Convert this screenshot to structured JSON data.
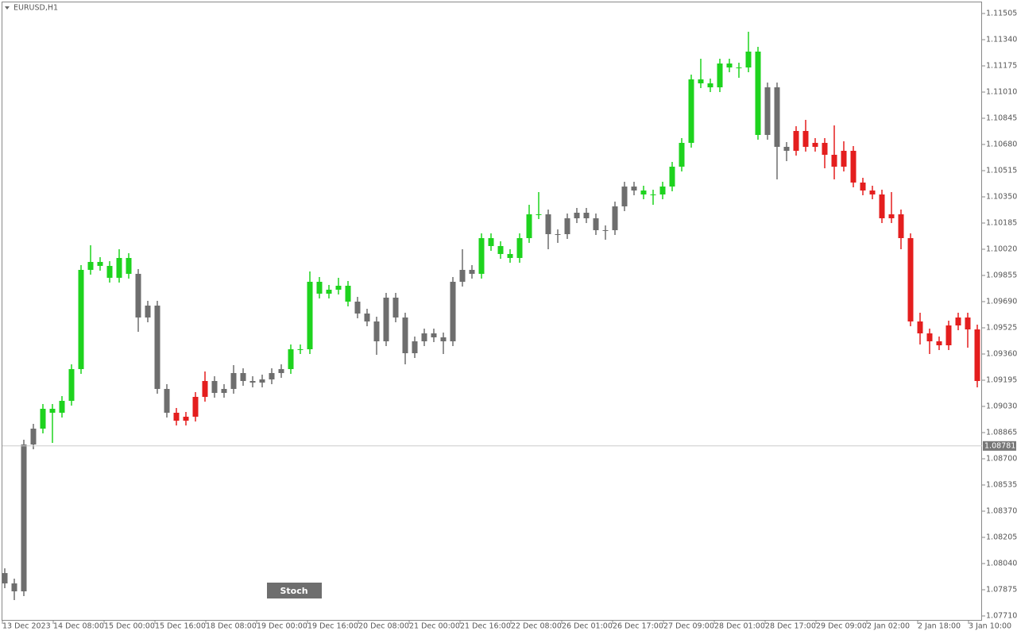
{
  "chart_data": {
    "type": "candlestick",
    "title": "EURUSD,H1",
    "open": [
      1.0798,
      1.07915,
      1.07865,
      1.0879,
      1.0889,
      1.09015,
      1.0899,
      1.09065,
      1.09265,
      1.0989,
      1.0994,
      1.09915,
      1.0984,
      1.09965,
      1.09865,
      1.0959,
      1.09665,
      1.0914,
      1.0899,
      1.0894,
      1.08965,
      1.0909,
      1.0919,
      1.09115,
      1.0914,
      1.0924,
      1.0919,
      1.0918,
      1.092,
      1.0924,
      1.09265,
      1.0939,
      1.0939,
      1.09815,
      1.0974,
      1.09765,
      1.0979,
      1.0969,
      1.09615,
      1.09565,
      1.0944,
      1.09715,
      1.0959,
      1.09365,
      1.0944,
      1.0949,
      1.09465,
      1.0944,
      1.09815,
      1.0989,
      1.09865,
      1.1009,
      1.1004,
      1.0999,
      1.09965,
      1.1009,
      1.1024,
      1.1024,
      1.10115,
      1.10115,
      1.10215,
      1.1025,
      1.10215,
      1.1014,
      1.1014,
      1.1029,
      1.10415,
      1.1039,
      1.10365,
      1.10365,
      1.10415,
      1.1054,
      1.1069,
      1.1109,
      1.11065,
      1.1104,
      1.1119,
      1.11165,
      1.11165,
      1.11265,
      1.1074,
      1.1104,
      1.10665,
      1.1064,
      1.10765,
      1.10665,
      1.1069,
      1.10615,
      1.1054,
      1.1064,
      1.1044,
      1.1039,
      1.10365,
      1.10215,
      1.1024,
      1.1009,
      1.09565,
      1.0949,
      1.0944,
      1.09415,
      1.0954,
      1.0959,
      1.09515
    ],
    "high": [
      1.0801,
      1.07945,
      1.0882,
      1.0892,
      1.09045,
      1.09045,
      1.09095,
      1.09295,
      1.0992,
      1.10045,
      1.0997,
      1.09945,
      1.1002,
      1.09995,
      1.09895,
      1.09695,
      1.09695,
      1.0917,
      1.0902,
      1.08995,
      1.0912,
      1.0925,
      1.0922,
      1.0917,
      1.0929,
      1.0927,
      1.0922,
      1.0923,
      1.0927,
      1.09295,
      1.0942,
      1.0942,
      1.0988,
      1.09845,
      1.09795,
      1.0984,
      1.0982,
      1.0972,
      1.09645,
      1.09595,
      1.09745,
      1.09745,
      1.0962,
      1.0947,
      1.0952,
      1.0952,
      1.09495,
      1.09845,
      1.1002,
      1.0992,
      1.1012,
      1.1012,
      1.1007,
      1.1002,
      1.1012,
      1.103,
      1.1038,
      1.1027,
      1.10145,
      1.10245,
      1.1028,
      1.1028,
      1.10245,
      1.1017,
      1.1032,
      1.10445,
      1.10445,
      1.1042,
      1.10395,
      1.10445,
      1.1057,
      1.1072,
      1.1112,
      1.1122,
      1.11095,
      1.1122,
      1.1122,
      1.11195,
      1.1139,
      1.11295,
      1.1107,
      1.1107,
      1.10695,
      1.10795,
      1.10835,
      1.1072,
      1.1072,
      1.108,
      1.107,
      1.1067,
      1.1047,
      1.1042,
      1.10395,
      1.1038,
      1.1027,
      1.1012,
      1.0962,
      1.0952,
      1.0947,
      1.0957,
      1.0962,
      1.0962,
      1.09545
    ],
    "low": [
      1.07885,
      1.0781,
      1.07835,
      1.0876,
      1.0886,
      1.088,
      1.0896,
      1.09035,
      1.09235,
      1.0986,
      1.09885,
      1.0981,
      1.0981,
      1.09835,
      1.095,
      1.0956,
      1.0911,
      1.0896,
      1.0891,
      1.0891,
      1.08935,
      1.0906,
      1.09085,
      1.09085,
      1.0911,
      1.0916,
      1.0915,
      1.0915,
      1.0917,
      1.0921,
      1.09235,
      1.0936,
      1.0936,
      1.0971,
      1.0971,
      1.09735,
      1.0966,
      1.09585,
      1.09535,
      1.09355,
      1.0941,
      1.0956,
      1.09295,
      1.09335,
      1.0941,
      1.09435,
      1.0936,
      1.0941,
      1.09785,
      1.09835,
      1.09835,
      1.1001,
      1.0996,
      1.09935,
      1.09935,
      1.1006,
      1.1021,
      1.1002,
      1.1006,
      1.10085,
      1.10185,
      1.10185,
      1.1011,
      1.1008,
      1.1011,
      1.1026,
      1.1036,
      1.10335,
      1.103,
      1.10335,
      1.10385,
      1.1051,
      1.1066,
      1.11035,
      1.1101,
      1.1101,
      1.11135,
      1.111,
      1.11135,
      1.1071,
      1.1071,
      1.1046,
      1.10575,
      1.1061,
      1.10635,
      1.10635,
      1.1053,
      1.1046,
      1.1051,
      1.1041,
      1.1036,
      1.10335,
      1.10185,
      1.10185,
      1.1002,
      1.09535,
      1.0942,
      1.0936,
      1.09385,
      1.09385,
      1.0951,
      1.094,
      1.0915
    ],
    "close": [
      1.07915,
      1.07865,
      1.0879,
      1.0889,
      1.09015,
      1.0899,
      1.09065,
      1.09265,
      1.0989,
      1.0994,
      1.09915,
      1.0984,
      1.09965,
      1.09865,
      1.0959,
      1.09665,
      1.0914,
      1.0899,
      1.0894,
      1.08965,
      1.0909,
      1.0919,
      1.09115,
      1.0914,
      1.0924,
      1.0919,
      1.0918,
      1.092,
      1.0924,
      1.09265,
      1.0939,
      1.0939,
      1.09815,
      1.0974,
      1.09765,
      1.0979,
      1.0969,
      1.09615,
      1.09565,
      1.0944,
      1.09715,
      1.0959,
      1.09365,
      1.0944,
      1.0949,
      1.09465,
      1.0944,
      1.09815,
      1.0989,
      1.09865,
      1.1009,
      1.1004,
      1.0999,
      1.09965,
      1.1009,
      1.1024,
      1.1024,
      1.10115,
      1.10115,
      1.10215,
      1.1025,
      1.10215,
      1.1014,
      1.1014,
      1.1029,
      1.10415,
      1.1039,
      1.10365,
      1.10365,
      1.10415,
      1.1054,
      1.1069,
      1.1109,
      1.11065,
      1.1104,
      1.1119,
      1.11165,
      1.11165,
      1.11265,
      1.1074,
      1.1104,
      1.10665,
      1.1064,
      1.10765,
      1.10665,
      1.1069,
      1.10615,
      1.1054,
      1.1064,
      1.1044,
      1.1039,
      1.10365,
      1.10215,
      1.1024,
      1.1009,
      1.09565,
      1.0949,
      1.0944,
      1.09415,
      1.0954,
      1.0959,
      1.09515,
      1.0919
    ],
    "colors": [
      "#6e6e6e",
      "#6e6e6e",
      "#6e6e6e",
      "#6e6e6e",
      "#1ed31e",
      "#1ed31e",
      "#1ed31e",
      "#1ed31e",
      "#1ed31e",
      "#1ed31e",
      "#1ed31e",
      "#1ed31e",
      "#1ed31e",
      "#1ed31e",
      "#6e6e6e",
      "#6e6e6e",
      "#6e6e6e",
      "#6e6e6e",
      "#e41e1e",
      "#e41e1e",
      "#e41e1e",
      "#e41e1e",
      "#6e6e6e",
      "#6e6e6e",
      "#6e6e6e",
      "#6e6e6e",
      "#6e6e6e",
      "#6e6e6e",
      "#6e6e6e",
      "#6e6e6e",
      "#1ed31e",
      "#1ed31e",
      "#1ed31e",
      "#1ed31e",
      "#1ed31e",
      "#1ed31e",
      "#1ed31e",
      "#6e6e6e",
      "#6e6e6e",
      "#6e6e6e",
      "#6e6e6e",
      "#6e6e6e",
      "#6e6e6e",
      "#6e6e6e",
      "#6e6e6e",
      "#6e6e6e",
      "#6e6e6e",
      "#6e6e6e",
      "#6e6e6e",
      "#6e6e6e",
      "#1ed31e",
      "#1ed31e",
      "#1ed31e",
      "#1ed31e",
      "#1ed31e",
      "#1ed31e",
      "#1ed31e",
      "#6e6e6e",
      "#6e6e6e",
      "#6e6e6e",
      "#6e6e6e",
      "#6e6e6e",
      "#6e6e6e",
      "#6e6e6e",
      "#6e6e6e",
      "#6e6e6e",
      "#6e6e6e",
      "#1ed31e",
      "#1ed31e",
      "#1ed31e",
      "#1ed31e",
      "#1ed31e",
      "#1ed31e",
      "#1ed31e",
      "#1ed31e",
      "#1ed31e",
      "#1ed31e",
      "#1ed31e",
      "#1ed31e",
      "#1ed31e",
      "#6e6e6e",
      "#6e6e6e",
      "#6e6e6e",
      "#e41e1e",
      "#e41e1e",
      "#e41e1e",
      "#e41e1e",
      "#e41e1e",
      "#e41e1e",
      "#e41e1e",
      "#e41e1e",
      "#e41e1e",
      "#e41e1e",
      "#e41e1e",
      "#e41e1e",
      "#e41e1e",
      "#e41e1e",
      "#e41e1e",
      "#e41e1e",
      "#e41e1e",
      "#e41e1e",
      "#e41e1e",
      "#e41e1e"
    ],
    "ylim": [
      1.0768,
      1.11575
    ],
    "yticks": [
      {
        "value": 1.11505,
        "label": "1.11505"
      },
      {
        "value": 1.1134,
        "label": "1.11340"
      },
      {
        "value": 1.11175,
        "label": "1.11175"
      },
      {
        "value": 1.1101,
        "label": "1.11010"
      },
      {
        "value": 1.10845,
        "label": "1.10845"
      },
      {
        "value": 1.1068,
        "label": "1.10680"
      },
      {
        "value": 1.10515,
        "label": "1.10515"
      },
      {
        "value": 1.1035,
        "label": "1.10350"
      },
      {
        "value": 1.10185,
        "label": "1.10185"
      },
      {
        "value": 1.1002,
        "label": "1.10020"
      },
      {
        "value": 1.09855,
        "label": "1.09855"
      },
      {
        "value": 1.0969,
        "label": "1.09690"
      },
      {
        "value": 1.09525,
        "label": "1.09525"
      },
      {
        "value": 1.0936,
        "label": "1.09360"
      },
      {
        "value": 1.09195,
        "label": "1.09195"
      },
      {
        "value": 1.0903,
        "label": "1.09030"
      },
      {
        "value": 1.08865,
        "label": "1.08865"
      },
      {
        "value": 1.087,
        "label": "1.08700"
      },
      {
        "value": 1.08535,
        "label": "1.08535"
      },
      {
        "value": 1.0837,
        "label": "1.08370"
      },
      {
        "value": 1.08205,
        "label": "1.08205"
      },
      {
        "value": 1.0804,
        "label": "1.08040"
      },
      {
        "value": 1.07875,
        "label": "1.07875"
      },
      {
        "value": 1.0771,
        "label": "1.07710"
      }
    ],
    "x_labels": [
      "13 Dec 2023",
      "14 Dec 08:00",
      "15 Dec 00:00",
      "15 Dec 16:00",
      "18 Dec 08:00",
      "19 Dec 00:00",
      "19 Dec 16:00",
      "20 Dec 08:00",
      "21 Dec 00:00",
      "21 Dec 16:00",
      "22 Dec 08:00",
      "26 Dec 01:00",
      "26 Dec 17:00",
      "27 Dec 09:00",
      "28 Dec 01:00",
      "28 Dec 17:00",
      "29 Dec 09:00",
      "2 Jan 02:00",
      "2 Jan 18:00",
      "3 Jan 10:00"
    ],
    "current_price": {
      "value": 1.08781,
      "label": "1.08781"
    },
    "button": "Stoch"
  }
}
